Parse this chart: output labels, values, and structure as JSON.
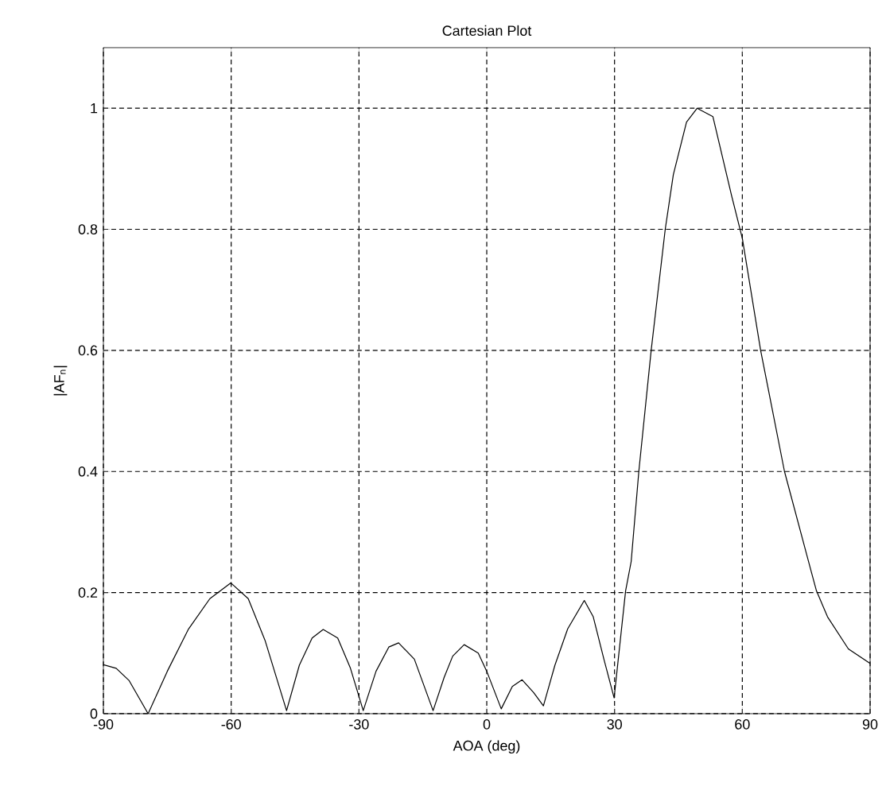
{
  "chart_data": {
    "type": "line",
    "title": "Cartesian Plot",
    "xlabel": "AOA (deg)",
    "ylabel": "|AF$_{n}$|",
    "xlim": [
      -90,
      90
    ],
    "ylim": [
      0,
      1.1
    ],
    "xticks": [
      -90,
      -60,
      -30,
      0,
      30,
      60,
      90
    ],
    "yticks": [
      0,
      0.2,
      0.4,
      0.6,
      0.8,
      1
    ],
    "grid": true,
    "marker": "none",
    "line_style": "solid",
    "series": [
      {
        "color": "#000000",
        "x": [
          -90,
          -87,
          -84,
          -79.5,
          -75,
          -70,
          -65,
          -60.1,
          -56,
          -52,
          -47,
          -44,
          -41,
          -38.4,
          -35,
          -32,
          -29,
          -26,
          -23,
          -20.7,
          -17,
          -12.6,
          -10,
          -8,
          -5.3,
          -2,
          0,
          3.4,
          6,
          8.3,
          11,
          13.3,
          16,
          19,
          22.9,
          25,
          27.5,
          29.9,
          32.6,
          33.9,
          35.7,
          38.6,
          41.9,
          43.8,
          46.9,
          49.4,
          53.1,
          57.5,
          60,
          64.3,
          69.9,
          76.2,
          77.4,
          80,
          84.9,
          90
        ],
        "values": [
          0.081,
          0.075,
          0.055,
          0.0,
          0.07,
          0.14,
          0.19,
          0.216,
          0.19,
          0.12,
          0.005,
          0.08,
          0.125,
          0.139,
          0.125,
          0.075,
          0.005,
          0.07,
          0.11,
          0.117,
          0.09,
          0.005,
          0.06,
          0.095,
          0.114,
          0.1,
          0.07,
          0.008,
          0.045,
          0.056,
          0.035,
          0.013,
          0.08,
          0.14,
          0.187,
          0.16,
          0.09,
          0.026,
          0.203,
          0.251,
          0.4,
          0.6,
          0.8,
          0.89,
          0.977,
          1.0,
          0.986,
          0.855,
          0.785,
          0.6,
          0.4,
          0.234,
          0.203,
          0.16,
          0.107,
          0.083
        ]
      }
    ]
  }
}
